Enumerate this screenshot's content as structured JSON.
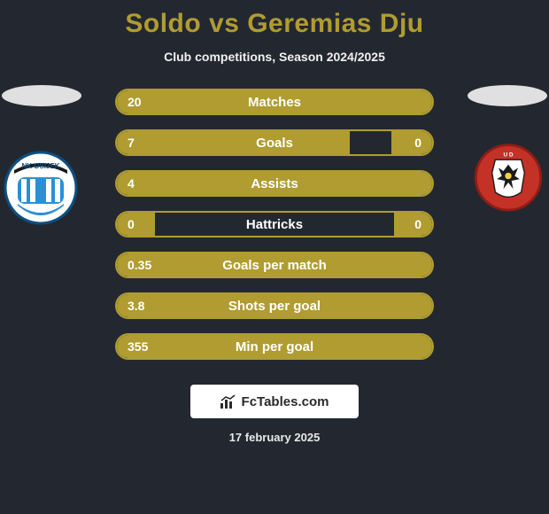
{
  "title": "Soldo vs Geremias Dju",
  "subtitle": "Club competitions, Season 2024/2025",
  "date": "17 february 2025",
  "watermark": "FcTables.com",
  "colors": {
    "background": "#232830",
    "accent": "#b09c31",
    "text": "#ffffff",
    "ellipse_fill": "#e0e0e0",
    "watermark_bg": "#ffffff",
    "watermark_text": "#2a2a2a"
  },
  "stats": [
    {
      "label": "Matches",
      "left_val": "20",
      "right_val": "",
      "left_fill_pct": 100,
      "right_fill_pct": 0
    },
    {
      "label": "Goals",
      "left_val": "7",
      "right_val": "0",
      "left_fill_pct": 74,
      "right_fill_pct": 13
    },
    {
      "label": "Assists",
      "left_val": "4",
      "right_val": "",
      "left_fill_pct": 100,
      "right_fill_pct": 0
    },
    {
      "label": "Hattricks",
      "left_val": "0",
      "right_val": "0",
      "left_fill_pct": 12,
      "right_fill_pct": 12
    },
    {
      "label": "Goals per match",
      "left_val": "0.35",
      "right_val": "",
      "left_fill_pct": 100,
      "right_fill_pct": 0
    },
    {
      "label": "Shots per goal",
      "left_val": "3.8",
      "right_val": "",
      "left_fill_pct": 100,
      "right_fill_pct": 0
    },
    {
      "label": "Min per goal",
      "left_val": "355",
      "right_val": "",
      "left_fill_pct": 100,
      "right_fill_pct": 0
    }
  ],
  "crest_left": {
    "name": "NK OSIJEK",
    "primary_color": "#2b8fd6",
    "secondary_color": "#ffffff",
    "outline_color": "#0b4f82"
  },
  "crest_right": {
    "name": "UD",
    "primary_color": "#c43127",
    "secondary_color": "#1a1a1a",
    "accent_color": "#f4d03f",
    "outline_color": "#8f1d16"
  }
}
